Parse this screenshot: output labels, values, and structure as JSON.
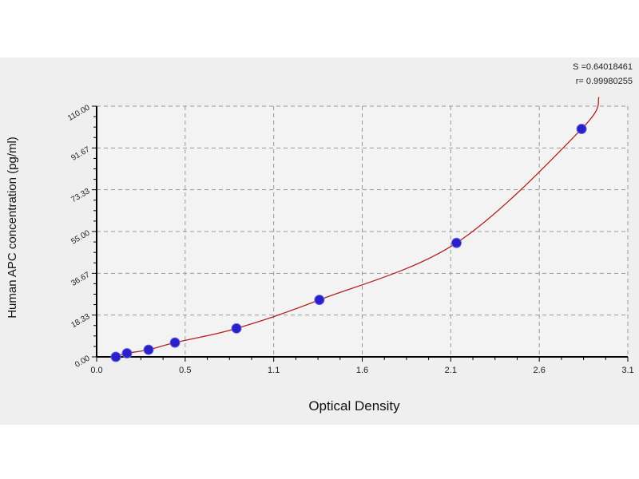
{
  "chart_data": {
    "type": "scatter",
    "xlabel": "Optical Density",
    "ylabel": "Human APC concentration (pg/ml)",
    "xlim": [
      0,
      3.1
    ],
    "ylim": [
      0,
      110
    ],
    "x_tick_labels": [
      "0.0",
      "0.5",
      "1.1",
      "1.6",
      "2.1",
      "2.6",
      "3.1"
    ],
    "y_tick_labels": [
      "0.00",
      "18.33",
      "36.67",
      "55.00",
      "73.33",
      "91.67",
      "110.00"
    ],
    "grid": true,
    "annotations": [
      "S =0.64018461",
      "r= 0.99980255"
    ],
    "series": [
      {
        "x": [
          0.112,
          0.177,
          0.303,
          0.457,
          0.816,
          1.3,
          2.1,
          2.83
        ],
        "y": [
          0,
          1.56,
          3.125,
          6.25,
          12.5,
          25,
          50,
          100
        ],
        "marker_color": "#2a1fc8",
        "fit_color": "#b22222"
      }
    ]
  }
}
